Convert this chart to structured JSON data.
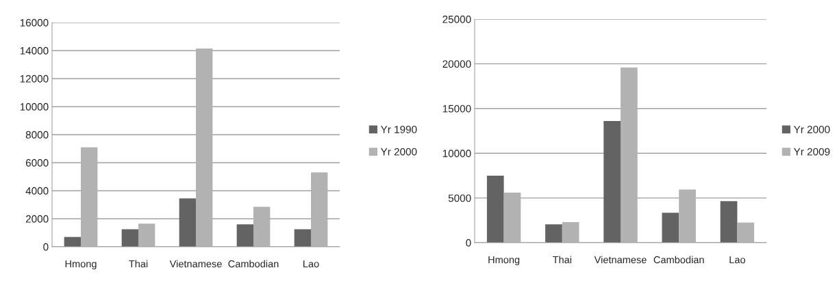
{
  "chart_data": [
    {
      "type": "bar",
      "categories": [
        "Hmong",
        "Thai",
        "Vietnamese",
        "Cambodian",
        "Lao"
      ],
      "series": [
        {
          "name": "Yr 1990",
          "color": "#636363",
          "values": [
            700,
            1250,
            3450,
            1600,
            1250
          ]
        },
        {
          "name": "Yr 2000",
          "color": "#b2b2b2",
          "values": [
            7100,
            1650,
            14150,
            2850,
            5300
          ]
        }
      ],
      "ylim": [
        0,
        16000
      ],
      "yticks": [
        0,
        2000,
        4000,
        6000,
        8000,
        10000,
        12000,
        14000,
        16000
      ],
      "grid": "y",
      "legend": "right"
    },
    {
      "type": "bar",
      "categories": [
        "Hmong",
        "Thai",
        "Vietnamese",
        "Cambodian",
        "Lao"
      ],
      "series": [
        {
          "name": "Yr 2000",
          "color": "#636363",
          "values": [
            7500,
            2050,
            13600,
            3350,
            4650
          ]
        },
        {
          "name": "Yr 2009",
          "color": "#b2b2b2",
          "values": [
            5600,
            2300,
            19600,
            5950,
            2250
          ]
        }
      ],
      "ylim": [
        0,
        25000
      ],
      "yticks": [
        0,
        5000,
        10000,
        15000,
        20000,
        25000
      ],
      "grid": "y",
      "legend": "right"
    }
  ]
}
